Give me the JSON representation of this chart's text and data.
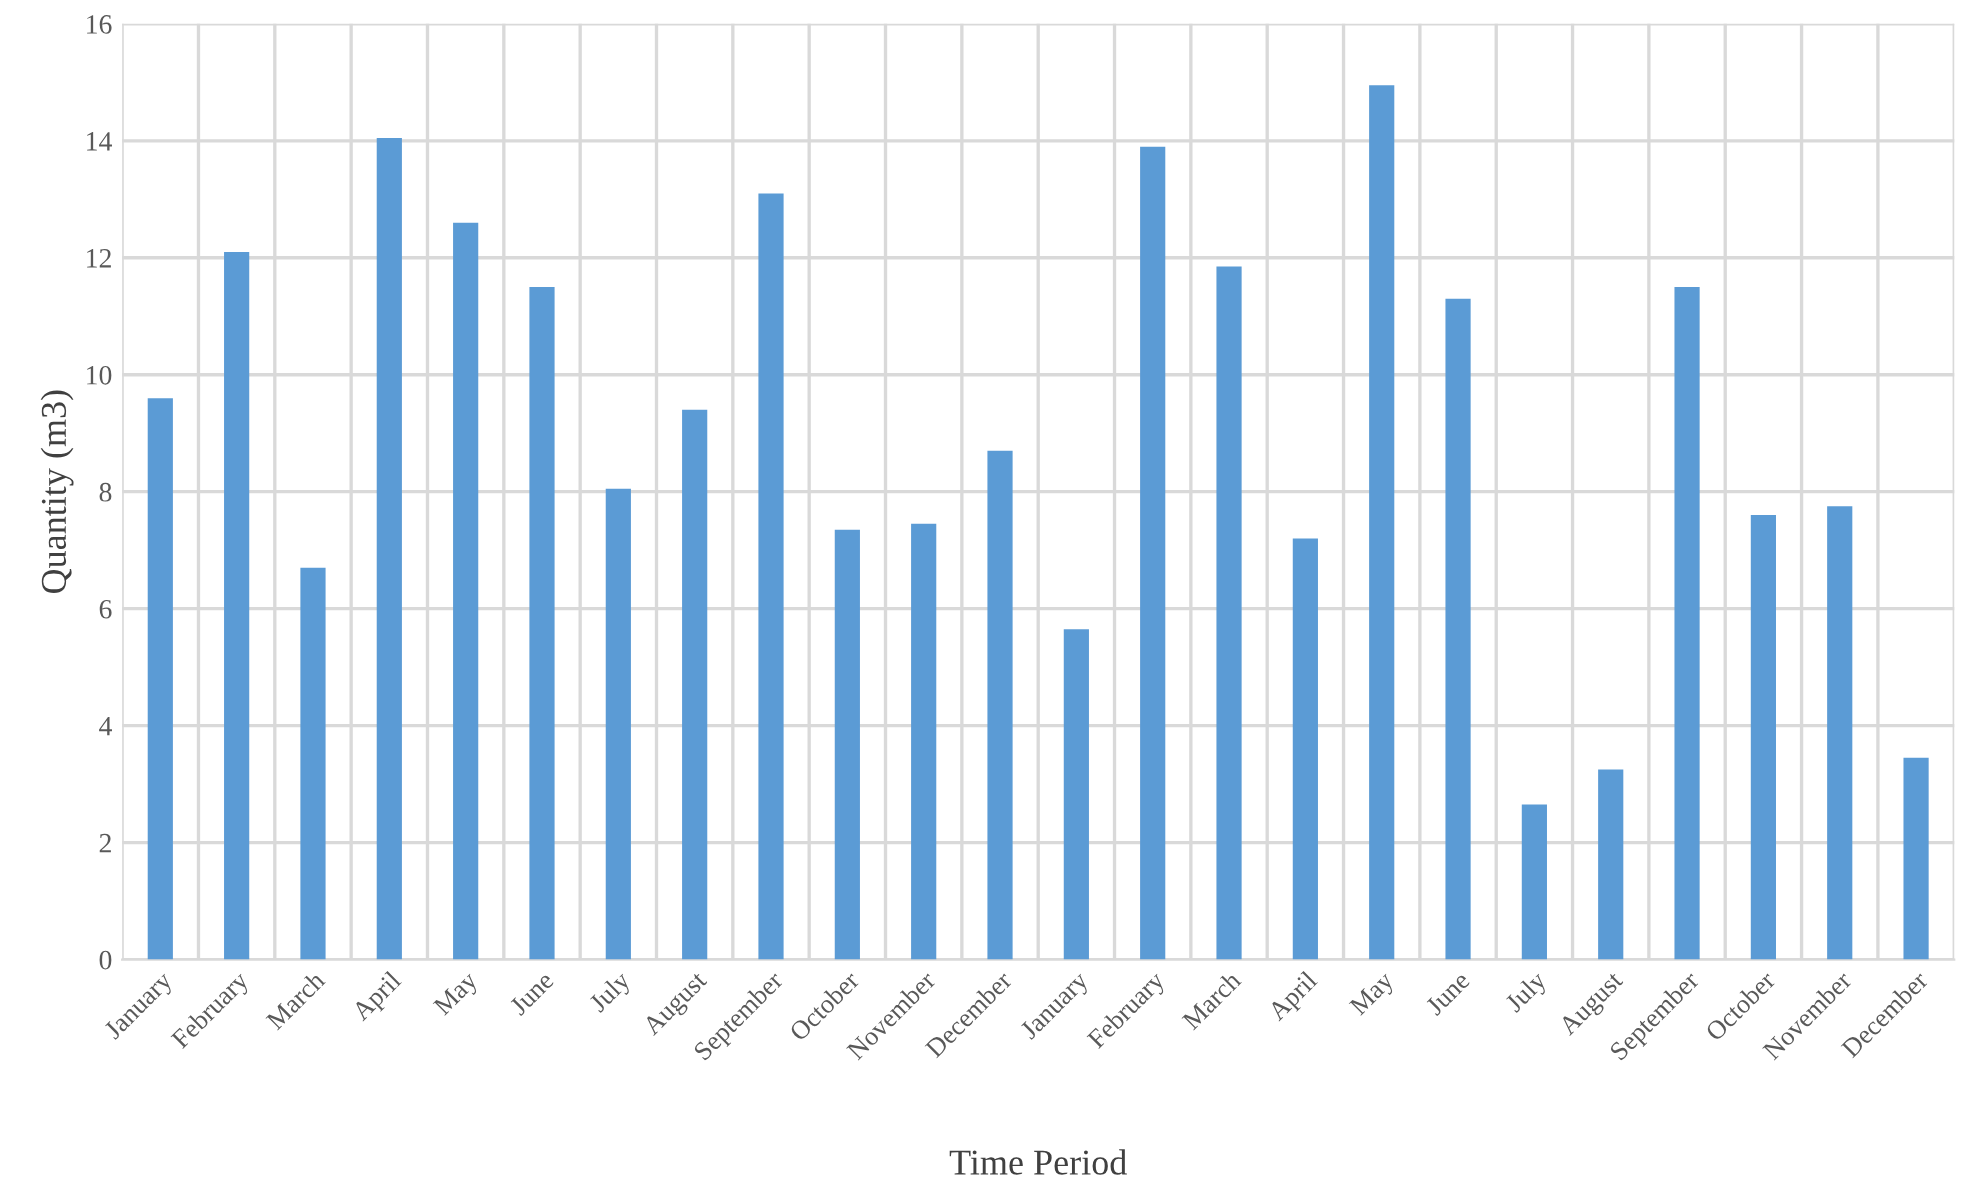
{
  "chart_data": {
    "type": "bar",
    "xlabel": "Time Period",
    "ylabel": "Quantity (m3)",
    "categories": [
      "January",
      "February",
      "March",
      "April",
      "May",
      "June",
      "July",
      "August",
      "September",
      "October",
      "November",
      "December",
      "January",
      "February",
      "March",
      "April",
      "May",
      "June",
      "July",
      "August",
      "September",
      "October",
      "November",
      "December"
    ],
    "values": [
      9.6,
      12.1,
      6.7,
      14.05,
      12.6,
      11.5,
      8.05,
      9.4,
      13.1,
      7.35,
      7.45,
      8.7,
      5.65,
      13.9,
      11.85,
      7.2,
      14.95,
      11.3,
      2.65,
      3.25,
      11.5,
      7.6,
      7.75,
      3.45
    ],
    "color": "#5b9bd5",
    "ylim": [
      0,
      16
    ],
    "yticks": [
      0,
      2,
      4,
      6,
      8,
      10,
      12,
      14,
      16
    ],
    "grid": true
  }
}
